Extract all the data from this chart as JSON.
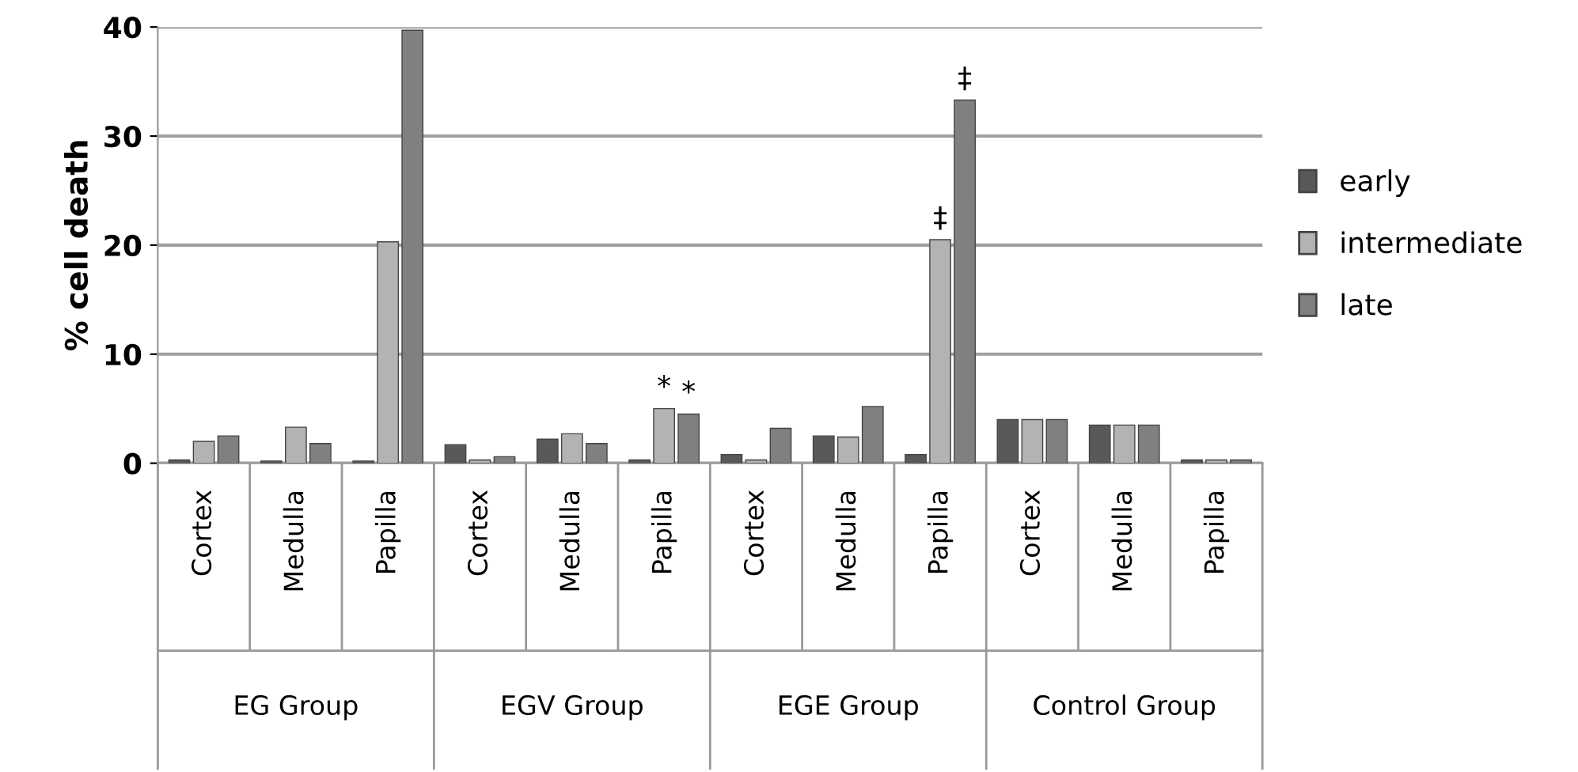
{
  "chart_data": {
    "type": "bar",
    "ylabel": "% cell death",
    "categories": [
      "Cortex",
      "Medulla",
      "Papilla",
      "Cortex",
      "Medulla",
      "Papilla",
      "Cortex",
      "Medulla",
      "Papilla",
      "Cortex",
      "Medulla",
      "Papilla"
    ],
    "annotations": [
      "EG Group",
      "EGV Group",
      "EGE Group",
      "Control Group"
    ],
    "series": [
      {
        "name": "early",
        "color": "#595959",
        "values": [
          0.3,
          0.2,
          0.2,
          1.7,
          2.2,
          0.3,
          0.8,
          2.5,
          0.8,
          4,
          3.5,
          0.3
        ]
      },
      {
        "name": "intermediate",
        "color": "#b3b3b3",
        "values": [
          2,
          3.3,
          20.3,
          0.3,
          2.7,
          5,
          0.3,
          2.4,
          20.5,
          4,
          3.5,
          0.3
        ],
        "value_labels": [
          null,
          null,
          null,
          null,
          null,
          "*",
          null,
          null,
          "‡",
          null,
          null,
          null
        ]
      },
      {
        "name": "late",
        "color": "#808080",
        "values": [
          2.5,
          1.8,
          39.7,
          0.6,
          1.8,
          4.5,
          3.2,
          5.2,
          33.3,
          4,
          3.5,
          0.3
        ],
        "value_labels": [
          null,
          null,
          null,
          null,
          null,
          "*",
          null,
          null,
          "‡",
          null,
          null,
          null
        ]
      }
    ],
    "ylim": [
      0,
      40
    ],
    "yticks": [
      0,
      10,
      20,
      30,
      40
    ],
    "grid": "y",
    "legend": "right"
  }
}
